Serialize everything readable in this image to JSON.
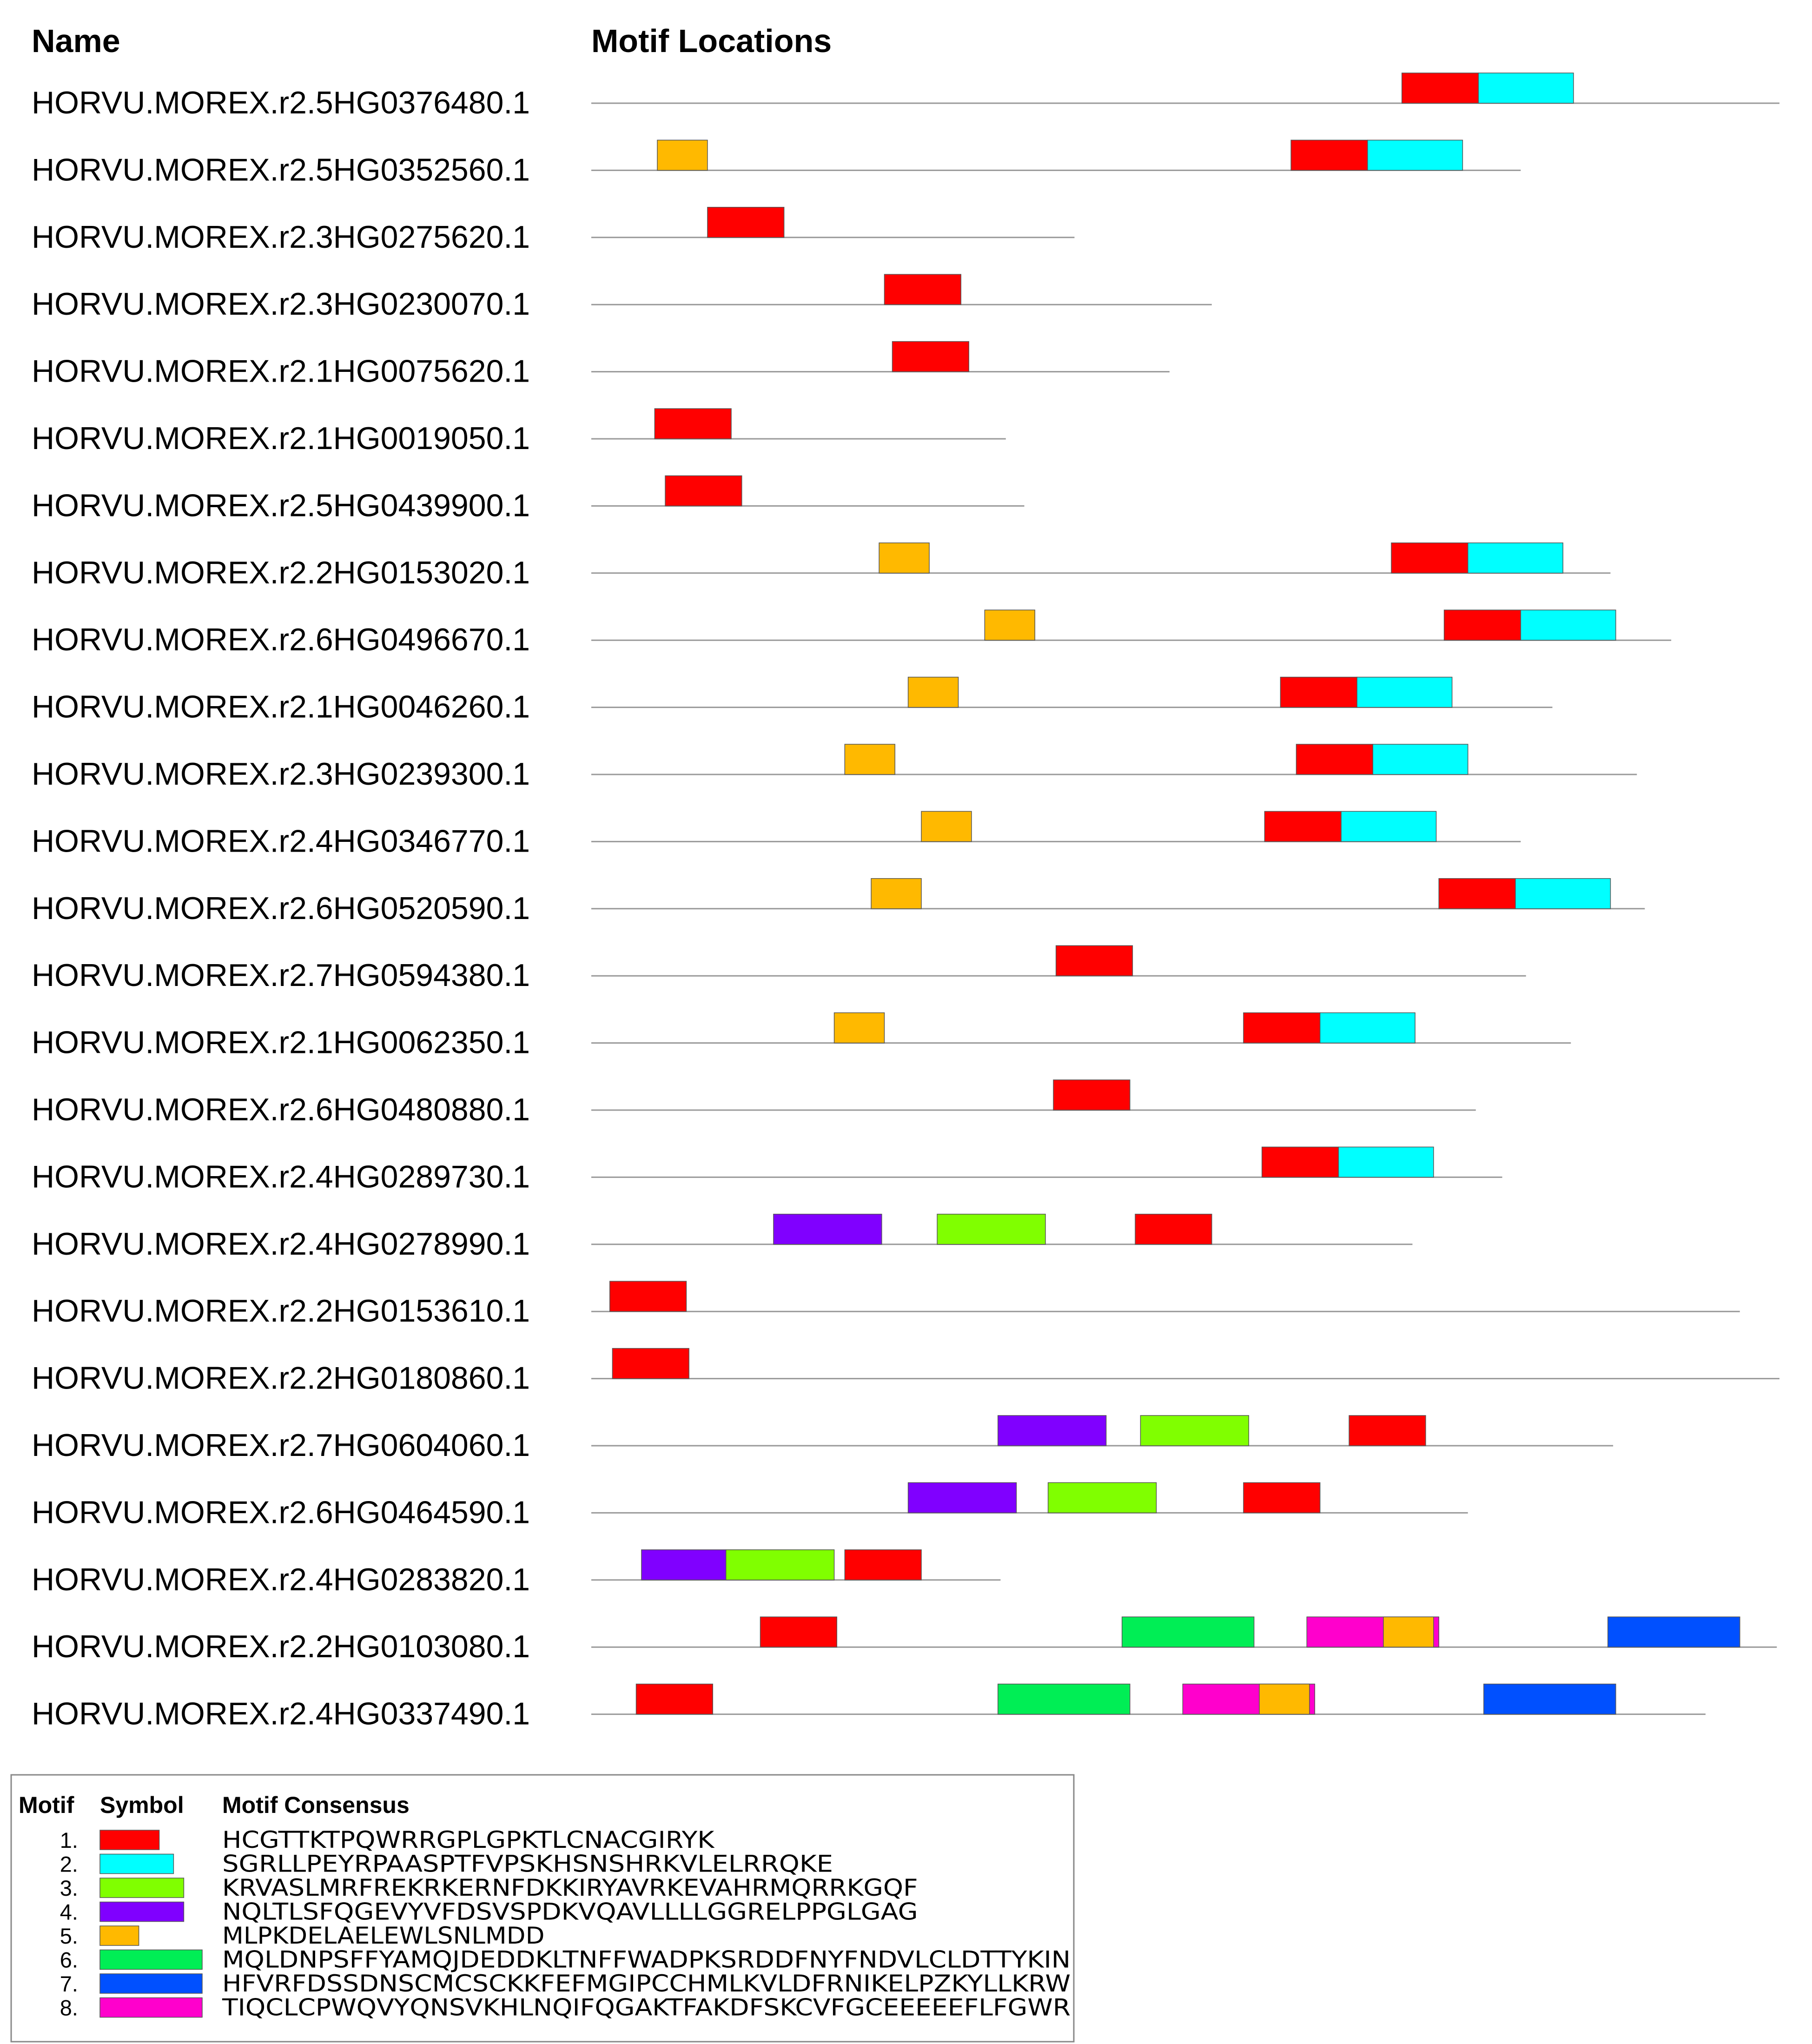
{
  "headers": {
    "name": "Name",
    "motif_locations": "Motif Locations"
  },
  "motifs": [
    {
      "id": "1",
      "number": "1.",
      "color": "#FF0000",
      "consensus": "HCGTTKTPQWRRGPLGPKTLCNACGIRYK",
      "length": 29
    },
    {
      "id": "2",
      "number": "2.",
      "color": "#00FFFF",
      "consensus": "SGRLLPEYRPAASPTFVPSKHSNSHRKVLELRRQKE",
      "length": 36
    },
    {
      "id": "3",
      "number": "3.",
      "color": "#80FF00",
      "consensus": "KRVASLMRFREKRKERNFDKKIRYAVRKEVAHRMQRRKGQF",
      "length": 41
    },
    {
      "id": "4",
      "number": "4.",
      "color": "#8000FF",
      "consensus": "NQLTLSFQGEVYVFDSVSPDKVQAVLLLLGGRELPPGLGAG",
      "length": 41
    },
    {
      "id": "5",
      "number": "5.",
      "color": "#FFB900",
      "consensus": "MLPKDELAELEWLSNLMDD",
      "length": 19
    },
    {
      "id": "6",
      "number": "6.",
      "color": "#00EE55",
      "consensus": "MQLDNPSFFYAMQJDEDDKLTNFFWADPKSRDDFNYFNDVLCLDTTYKIN",
      "length": 50
    },
    {
      "id": "7",
      "number": "7.",
      "color": "#0050FF",
      "consensus": "HFVRFDSSDNSCMCSCKKFEFMGIPCCHMLKVLDFRNIKELPZKYLLKRW",
      "length": 50
    },
    {
      "id": "8",
      "number": "8.",
      "color": "#FF00CC",
      "consensus": "TIQCLCPWQVYQNSVKHLNQIFQGAKTFAKDFSKCVFGCEEEEEFLFGWR",
      "length": 50
    }
  ],
  "legend": {
    "col_motif": "Motif",
    "col_symbol": "Symbol",
    "col_consensus": "Motif Consensus"
  },
  "genes": [
    {
      "name": "HORVU.MOREX.r2.5HG0376480.1",
      "length": 450,
      "motifs": [
        {
          "motif": "1",
          "start": 307
        },
        {
          "motif": "2",
          "start": 336
        }
      ]
    },
    {
      "name": "HORVU.MOREX.r2.5HG0352560.1",
      "length": 352,
      "motifs": [
        {
          "motif": "5",
          "start": 25
        },
        {
          "motif": "1",
          "start": 265
        },
        {
          "motif": "2",
          "start": 294
        }
      ]
    },
    {
      "name": "HORVU.MOREX.r2.3HG0275620.1",
      "length": 183,
      "motifs": [
        {
          "motif": "1",
          "start": 44
        }
      ]
    },
    {
      "name": "HORVU.MOREX.r2.3HG0230070.1",
      "length": 235,
      "motifs": [
        {
          "motif": "1",
          "start": 111
        }
      ]
    },
    {
      "name": "HORVU.MOREX.r2.1HG0075620.1",
      "length": 219,
      "motifs": [
        {
          "motif": "1",
          "start": 114
        }
      ]
    },
    {
      "name": "HORVU.MOREX.r2.1HG0019050.1",
      "length": 157,
      "motifs": [
        {
          "motif": "1",
          "start": 24
        }
      ]
    },
    {
      "name": "HORVU.MOREX.r2.5HG0439900.1",
      "length": 164,
      "motifs": [
        {
          "motif": "1",
          "start": 28
        }
      ]
    },
    {
      "name": "HORVU.MOREX.r2.2HG0153020.1",
      "length": 386,
      "motifs": [
        {
          "motif": "5",
          "start": 109
        },
        {
          "motif": "1",
          "start": 303
        },
        {
          "motif": "2",
          "start": 332
        }
      ]
    },
    {
      "name": "HORVU.MOREX.r2.6HG0496670.1",
      "length": 409,
      "motifs": [
        {
          "motif": "5",
          "start": 149
        },
        {
          "motif": "1",
          "start": 323
        },
        {
          "motif": "2",
          "start": 352
        }
      ]
    },
    {
      "name": "HORVU.MOREX.r2.1HG0046260.1",
      "length": 364,
      "motifs": [
        {
          "motif": "5",
          "start": 120
        },
        {
          "motif": "1",
          "start": 261
        },
        {
          "motif": "2",
          "start": 290
        }
      ]
    },
    {
      "name": "HORVU.MOREX.r2.3HG0239300.1",
      "length": 396,
      "motifs": [
        {
          "motif": "5",
          "start": 96
        },
        {
          "motif": "1",
          "start": 267
        },
        {
          "motif": "2",
          "start": 296
        }
      ]
    },
    {
      "name": "HORVU.MOREX.r2.4HG0346770.1",
      "length": 352,
      "motifs": [
        {
          "motif": "5",
          "start": 125
        },
        {
          "motif": "1",
          "start": 255
        },
        {
          "motif": "2",
          "start": 284
        }
      ]
    },
    {
      "name": "HORVU.MOREX.r2.6HG0520590.1",
      "length": 399,
      "motifs": [
        {
          "motif": "5",
          "start": 106
        },
        {
          "motif": "1",
          "start": 321
        },
        {
          "motif": "2",
          "start": 350
        }
      ]
    },
    {
      "name": "HORVU.MOREX.r2.7HG0594380.1",
      "length": 354,
      "motifs": [
        {
          "motif": "1",
          "start": 176
        }
      ]
    },
    {
      "name": "HORVU.MOREX.r2.1HG0062350.1",
      "length": 371,
      "motifs": [
        {
          "motif": "5",
          "start": 92
        },
        {
          "motif": "1",
          "start": 247
        },
        {
          "motif": "2",
          "start": 276
        }
      ]
    },
    {
      "name": "HORVU.MOREX.r2.6HG0480880.1",
      "length": 335,
      "motifs": [
        {
          "motif": "1",
          "start": 175
        }
      ]
    },
    {
      "name": "HORVU.MOREX.r2.4HG0289730.1",
      "length": 345,
      "motifs": [
        {
          "motif": "1",
          "start": 254
        },
        {
          "motif": "2",
          "start": 283
        }
      ]
    },
    {
      "name": "HORVU.MOREX.r2.4HG0278990.1",
      "length": 311,
      "motifs": [
        {
          "motif": "4",
          "start": 69
        },
        {
          "motif": "3",
          "start": 131
        },
        {
          "motif": "1",
          "start": 206
        }
      ]
    },
    {
      "name": "HORVU.MOREX.r2.2HG0153610.1",
      "length": 435,
      "motifs": [
        {
          "motif": "1",
          "start": 7
        }
      ]
    },
    {
      "name": "HORVU.MOREX.r2.2HG0180860.1",
      "length": 450,
      "motifs": [
        {
          "motif": "1",
          "start": 8
        }
      ]
    },
    {
      "name": "HORVU.MOREX.r2.7HG0604060.1",
      "length": 387,
      "motifs": [
        {
          "motif": "4",
          "start": 154
        },
        {
          "motif": "3",
          "start": 208
        },
        {
          "motif": "1",
          "start": 287
        }
      ]
    },
    {
      "name": "HORVU.MOREX.r2.6HG0464590.1",
      "length": 332,
      "motifs": [
        {
          "motif": "4",
          "start": 120
        },
        {
          "motif": "3",
          "start": 173
        },
        {
          "motif": "1",
          "start": 247
        }
      ]
    },
    {
      "name": "HORVU.MOREX.r2.4HG0283820.1",
      "length": 155,
      "motifs": [
        {
          "motif": "4",
          "start": 19
        },
        {
          "motif": "3",
          "start": 51
        },
        {
          "motif": "1",
          "start": 96
        }
      ]
    },
    {
      "name": "HORVU.MOREX.r2.2HG0103080.1",
      "length": 449,
      "motifs": [
        {
          "motif": "1",
          "start": 64
        },
        {
          "motif": "6",
          "start": 201
        },
        {
          "motif": "8",
          "start": 271
        },
        {
          "motif": "5",
          "start": 300
        },
        {
          "motif": "7",
          "start": 385
        }
      ]
    },
    {
      "name": "HORVU.MOREX.r2.4HG0337490.1",
      "length": 422,
      "motifs": [
        {
          "motif": "1",
          "start": 17
        },
        {
          "motif": "6",
          "start": 154
        },
        {
          "motif": "8",
          "start": 224
        },
        {
          "motif": "5",
          "start": 253
        },
        {
          "motif": "7",
          "start": 338
        }
      ]
    }
  ]
}
